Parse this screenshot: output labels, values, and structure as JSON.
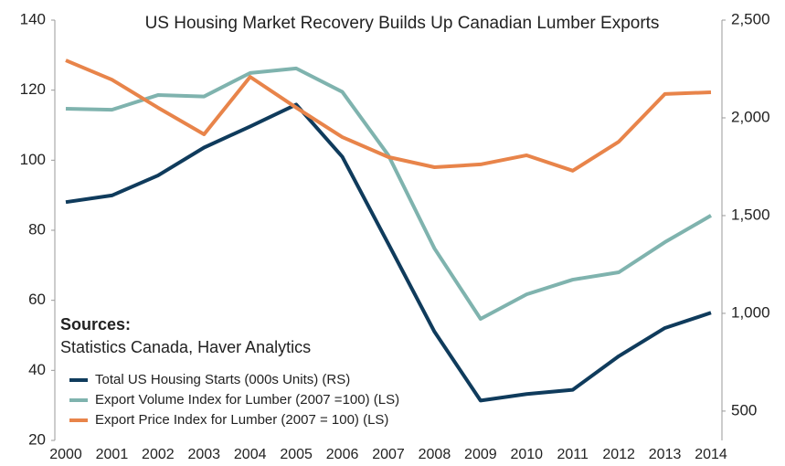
{
  "chart_data": {
    "type": "line",
    "title": "US Housing Market Recovery Builds Up Canadian Lumber Exports",
    "annotations": [
      "Sources:",
      "Statistics Canada, Haver Analytics"
    ],
    "categories": [
      "2000",
      "2001",
      "2002",
      "2003",
      "2004",
      "2005",
      "2006",
      "2007",
      "2008",
      "2009",
      "2010",
      "2011",
      "2012",
      "2013",
      "2014"
    ],
    "series": [
      {
        "name": "Total US Housing Starts (000s Units) (RS)",
        "color": "#0f3b5c",
        "axis": "y2",
        "values": [
          1569,
          1603,
          1705,
          1848,
          1956,
          2068,
          1801,
          1355,
          906,
          554,
          587,
          609,
          781,
          925,
          1003
        ]
      },
      {
        "name": "Export Volume Index for Lumber (2007 =100) (LS)",
        "color": "#7fb3ae",
        "values": [
          114.7,
          114.4,
          118.6,
          118.2,
          124.9,
          126.2,
          119.5,
          101.4,
          74.8,
          54.7,
          61.7,
          65.9,
          68,
          76.6,
          84.2
        ]
      },
      {
        "name": "Export Price Index for Lumber (2007 = 100) (LS)",
        "color": "#e8844a",
        "values": [
          128.5,
          123,
          115,
          107.4,
          123.8,
          115,
          106.6,
          100.9,
          98,
          98.8,
          101.4,
          97,
          105.3,
          118.9,
          119.4
        ]
      }
    ],
    "ylim": [
      20,
      140
    ],
    "yticks": [
      20,
      40,
      60,
      80,
      100,
      120,
      140
    ],
    "y2lim": [
      350,
      2500
    ],
    "y2ticks": [
      {
        "value": 500,
        "label": "500"
      },
      {
        "value": 1000,
        "label": "1,000"
      },
      {
        "value": 1500,
        "label": "1,500"
      },
      {
        "value": 2000,
        "label": "2,000"
      },
      {
        "value": 2500,
        "label": "2,500"
      }
    ]
  }
}
